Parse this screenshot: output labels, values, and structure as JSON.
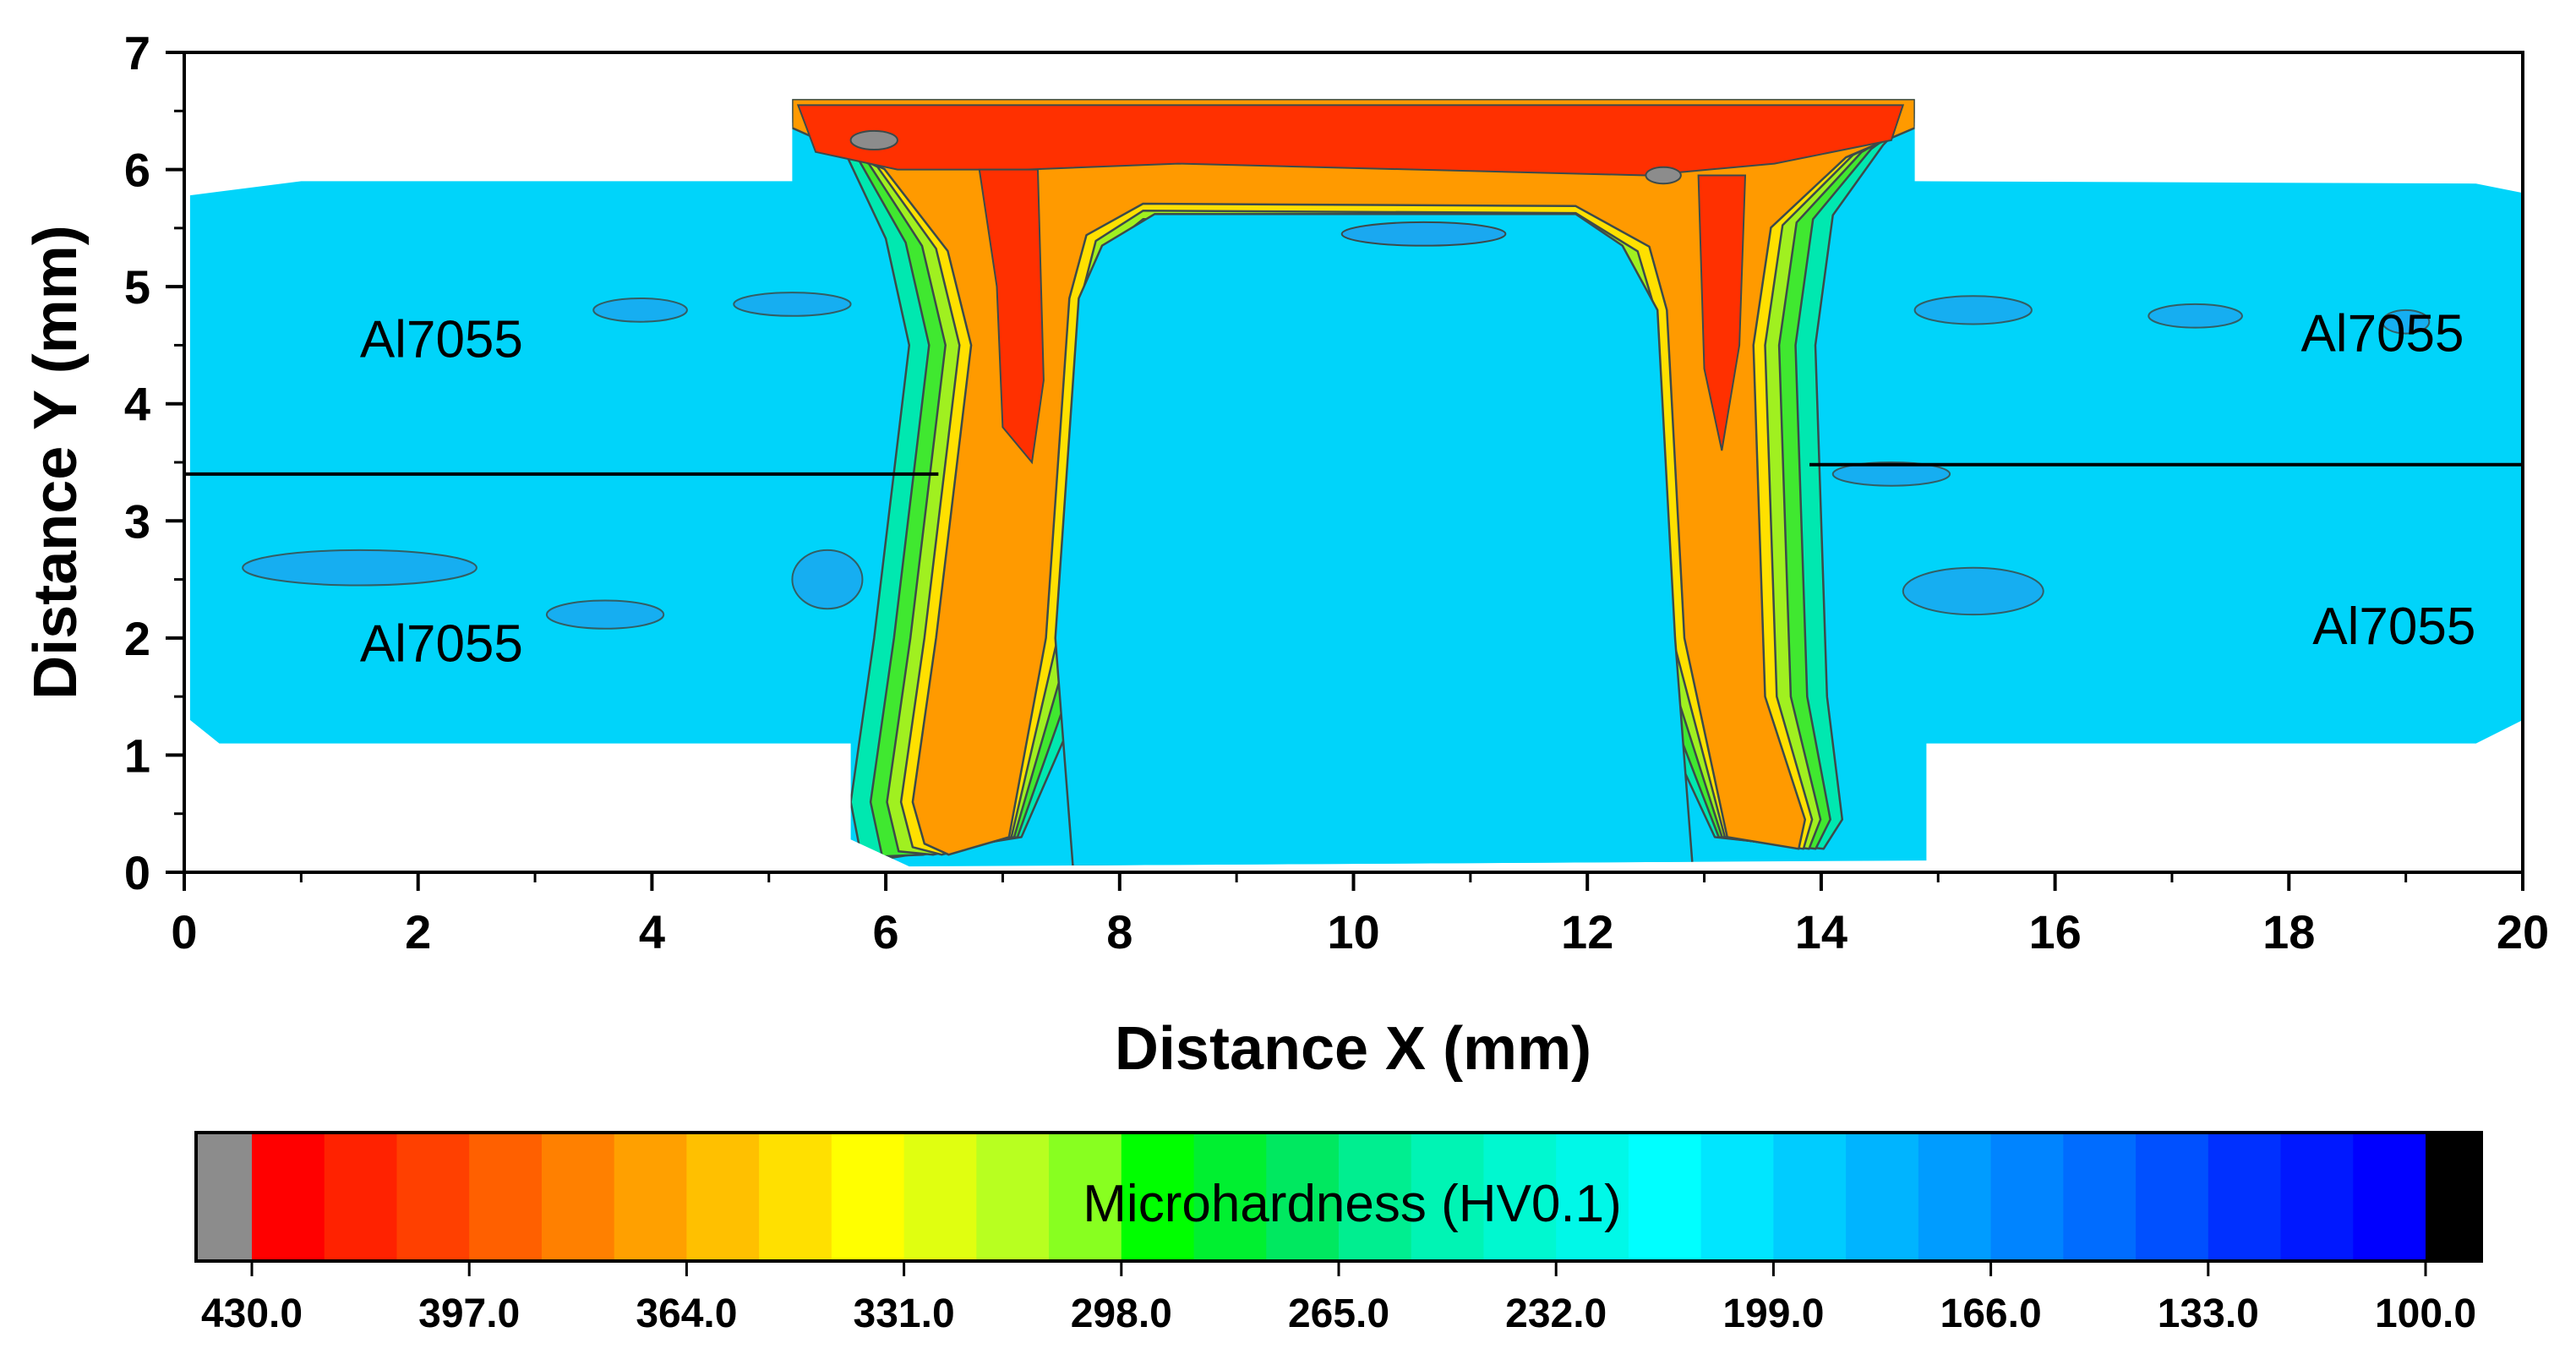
{
  "chart_data": {
    "type": "heatmap",
    "title": "",
    "xlabel": "Distance X (mm)",
    "ylabel": "Distance Y (mm)",
    "xlim": [
      0,
      20
    ],
    "ylim": [
      0,
      7
    ],
    "x_ticks": [
      "0",
      "2",
      "4",
      "6",
      "8",
      "10",
      "12",
      "14",
      "16",
      "18",
      "20"
    ],
    "y_ticks": [
      "0",
      "1",
      "2",
      "3",
      "4",
      "5",
      "6",
      "7"
    ],
    "region_labels": [
      {
        "text": "Al7055",
        "x": 2.2,
        "y": 4.4
      },
      {
        "text": "Al7055",
        "x": 2.2,
        "y": 1.8
      },
      {
        "text": "Al7055",
        "x": 18.8,
        "y": 4.45
      },
      {
        "text": "Al7055",
        "x": 18.9,
        "y": 1.95
      }
    ],
    "interface_lines": [
      {
        "x": [
          0,
          6.45
        ],
        "y": [
          3.4,
          3.4
        ]
      },
      {
        "x": [
          13.9,
          20
        ],
        "y": [
          3.48,
          3.48
        ]
      }
    ],
    "base_hardness_hv": 175,
    "hard_zone_hardness_hv": 400,
    "colorbar": {
      "title": "Microhardness (HV0.1)",
      "ticks": [
        "430.0",
        "397.0",
        "364.0",
        "331.0",
        "298.0",
        "265.0",
        "232.0",
        "199.0",
        "166.0",
        "133.0",
        "100.0"
      ],
      "max": 430.0,
      "min": 100.0,
      "over_color": "#8c8c8c",
      "under_color": "#000000",
      "levels": [
        "#ff0000",
        "#ff2200",
        "#ff4000",
        "#ff6000",
        "#ff8000",
        "#ffa000",
        "#ffc000",
        "#ffe000",
        "#ffff00",
        "#e0ff10",
        "#b8ff20",
        "#88ff20",
        "#00ff00",
        "#00f030",
        "#00e860",
        "#00ee90",
        "#00f4b4",
        "#00f8d0",
        "#00f8e8",
        "#00ffff",
        "#00e6ff",
        "#00ccff",
        "#00b4ff",
        "#009cff",
        "#0084ff",
        "#006cff",
        "#0050ff",
        "#0030ff",
        "#0018ff",
        "#0000ff"
      ]
    },
    "colors": {
      "base": "#00d4fa",
      "base_dark": "#1aa8f0",
      "ring_outer": "#00e8b0",
      "ring_mid": "#40e830",
      "ring_inner": "#a0f020",
      "ring_yellow": "#ffe000",
      "ring_orange": "#ff9a00",
      "core": "#ff3000",
      "contour": "#3c4a4a"
    }
  }
}
